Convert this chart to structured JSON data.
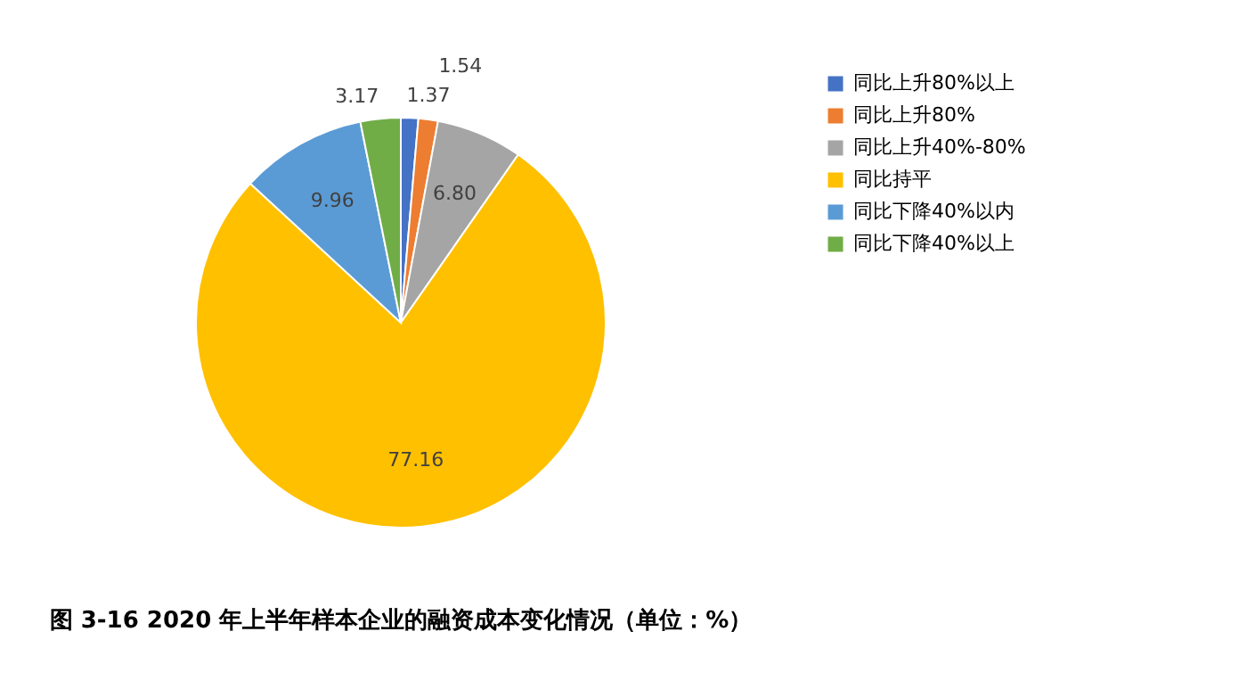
{
  "chart_data": {
    "type": "pie",
    "title": "图 3-16  2020 年上半年样本企业的融资成本变化情况（单位：%）",
    "categories": [
      "同比上升80%以上",
      "同比上升80%",
      "同比上升40%-80%",
      "同比持平",
      "同比下降40%以内",
      "同比下降40%以上"
    ],
    "values": [
      1.37,
      1.54,
      6.8,
      77.16,
      9.96,
      3.17
    ],
    "colors": [
      "#4472c4",
      "#ed7d31",
      "#a5a5a5",
      "#ffc000",
      "#5b9bd5",
      "#70ad47"
    ],
    "value_labels": [
      "1.37",
      "1.54",
      "6.80",
      "77.16",
      "9.96",
      "3.17"
    ],
    "legend": "right"
  }
}
